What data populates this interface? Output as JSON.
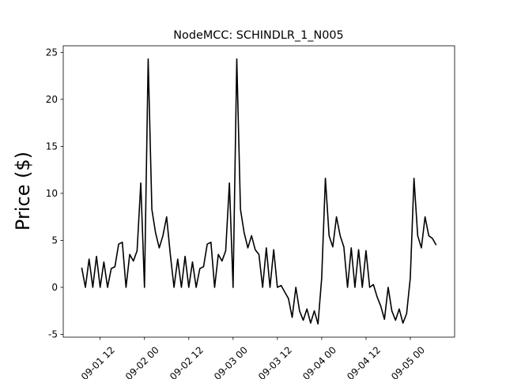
{
  "chart_data": {
    "type": "line",
    "title": "NodeMCC: SCHINDLR_1_N005",
    "y_label": "Price ($)",
    "color": "#000000",
    "x": [
      "09-01 07",
      "09-01 08",
      "09-01 09",
      "09-01 10",
      "09-01 11",
      "09-01 12",
      "09-01 13",
      "09-01 14",
      "09-01 15",
      "09-01 16",
      "09-01 17",
      "09-01 18",
      "09-01 19",
      "09-01 20",
      "09-01 21",
      "09-01 22",
      "09-01 23",
      "09-02 00",
      "09-02 01",
      "09-02 02",
      "09-02 03",
      "09-02 04",
      "09-02 05",
      "09-02 06",
      "09-02 07",
      "09-02 08",
      "09-02 09",
      "09-02 10",
      "09-02 11",
      "09-02 12",
      "09-02 13",
      "09-02 14",
      "09-02 15",
      "09-02 16",
      "09-02 17",
      "09-02 18",
      "09-02 19",
      "09-02 20",
      "09-02 21",
      "09-02 22",
      "09-02 23",
      "09-03 00",
      "09-03 01",
      "09-03 02",
      "09-03 03",
      "09-03 04",
      "09-03 05",
      "09-03 06",
      "09-03 07",
      "09-03 08",
      "09-03 09",
      "09-03 10",
      "09-03 11",
      "09-03 12",
      "09-03 13",
      "09-03 14",
      "09-03 15",
      "09-03 16",
      "09-03 17",
      "09-03 18",
      "09-03 19",
      "09-03 20",
      "09-03 21",
      "09-03 22",
      "09-03 23",
      "09-04 00",
      "09-04 01",
      "09-04 02",
      "09-04 03",
      "09-04 04",
      "09-04 05",
      "09-04 06",
      "09-04 07",
      "09-04 08",
      "09-04 09",
      "09-04 10",
      "09-04 11",
      "09-04 12",
      "09-04 13",
      "09-04 14",
      "09-04 15",
      "09-04 16",
      "09-04 17",
      "09-04 18",
      "09-04 19",
      "09-04 20",
      "09-04 21",
      "09-04 22",
      "09-04 23",
      "09-05 00",
      "09-05 01",
      "09-05 02",
      "09-05 03",
      "09-05 04",
      "09-05 05",
      "09-05 06",
      "09-05 07"
    ],
    "values": [
      2.1,
      0,
      3.0,
      0,
      3.3,
      0,
      2.7,
      0,
      2.0,
      2.2,
      4.6,
      4.8,
      0,
      3.5,
      2.8,
      3.9,
      11.1,
      0,
      24.3,
      8.3,
      5.8,
      4.2,
      5.5,
      7.5,
      3.5,
      0,
      3.0,
      0,
      3.3,
      0,
      2.7,
      0,
      2.0,
      2.2,
      4.6,
      4.8,
      0,
      3.5,
      2.8,
      3.9,
      11.1,
      0,
      24.3,
      8.3,
      5.8,
      4.2,
      5.5,
      4.0,
      3.5,
      0,
      4.2,
      0,
      4.0,
      0,
      0.2,
      -0.5,
      -1.2,
      -3.2,
      0,
      -2.5,
      -3.5,
      -2.3,
      -3.8,
      -2.5,
      -3.9,
      1.0,
      11.6,
      5.5,
      4.3,
      7.5,
      5.5,
      4.3,
      0,
      4.2,
      0,
      4.0,
      0,
      3.9,
      0,
      0.3,
      -1.0,
      -2.0,
      -3.4,
      0,
      -2.5,
      -3.5,
      -2.3,
      -3.8,
      -2.8,
      1.0,
      11.6,
      5.5,
      4.2,
      7.5,
      5.5,
      5.2,
      4.5
    ],
    "xlim": [
      "09-01 02",
      "09-05 12"
    ],
    "xticks": [
      "09-01 12",
      "09-02 00",
      "09-02 12",
      "09-03 00",
      "09-03 12",
      "09-04 00",
      "09-04 12",
      "09-05 00"
    ],
    "ylim": [
      -5.3,
      25.7
    ],
    "yticks": [
      -5,
      0,
      5,
      10,
      15,
      20,
      25
    ]
  }
}
